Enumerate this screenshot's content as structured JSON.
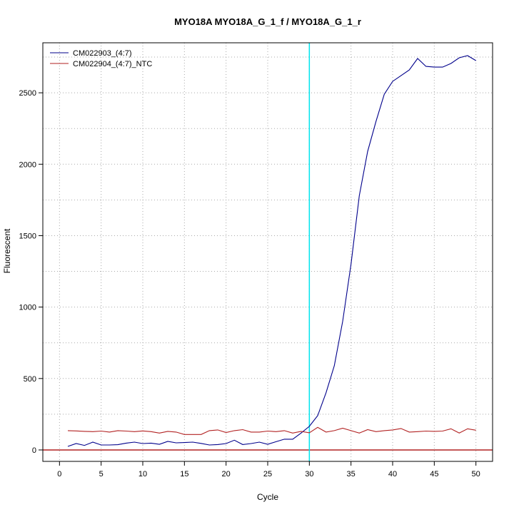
{
  "chart_data": {
    "type": "line",
    "title": "MYO18A  MYO18A_G_1_f / MYO18A_G_1_r",
    "xlabel": "Cycle",
    "ylabel": "Fluorescent",
    "xlim": [
      -2,
      52
    ],
    "ylim": [
      -80,
      2850
    ],
    "xticks": [
      0,
      5,
      10,
      15,
      20,
      25,
      30,
      35,
      40,
      45,
      50
    ],
    "yticks": [
      0,
      500,
      1000,
      1500,
      2000,
      2500
    ],
    "grid": true,
    "legend_position": "top-left",
    "threshold_x": 30,
    "threshold_color": "#00e5ee",
    "baseline_y": 0,
    "baseline_color": "#b22222",
    "x": [
      1,
      2,
      3,
      4,
      5,
      6,
      7,
      8,
      9,
      10,
      11,
      12,
      13,
      14,
      15,
      16,
      17,
      18,
      19,
      20,
      21,
      22,
      23,
      24,
      25,
      26,
      27,
      28,
      29,
      30,
      31,
      32,
      33,
      34,
      35,
      36,
      37,
      38,
      39,
      40,
      41,
      42,
      43,
      44,
      45,
      46,
      47,
      48,
      49,
      50
    ],
    "series": [
      {
        "name": "CM022903_(4:7)",
        "color": "#00008b",
        "values": [
          25,
          45,
          32,
          55,
          35,
          35,
          37,
          48,
          55,
          45,
          48,
          40,
          60,
          50,
          52,
          55,
          46,
          35,
          38,
          45,
          68,
          38,
          45,
          55,
          40,
          58,
          75,
          75,
          118,
          165,
          240,
          400,
          590,
          900,
          1300,
          1780,
          2090,
          2300,
          2490,
          2580,
          2620,
          2660,
          2740,
          2685,
          2680,
          2680,
          2705,
          2745,
          2760,
          2725
        ]
      },
      {
        "name": "CM022904_(4:7)_NTC",
        "color": "#b22222",
        "values": [
          135,
          133,
          130,
          128,
          132,
          125,
          135,
          132,
          128,
          133,
          128,
          118,
          130,
          125,
          108,
          108,
          108,
          135,
          140,
          122,
          135,
          142,
          125,
          125,
          132,
          128,
          135,
          118,
          130,
          120,
          158,
          125,
          135,
          152,
          135,
          118,
          142,
          128,
          135,
          140,
          150,
          125,
          128,
          132,
          130,
          132,
          148,
          118,
          148,
          138
        ]
      }
    ]
  }
}
